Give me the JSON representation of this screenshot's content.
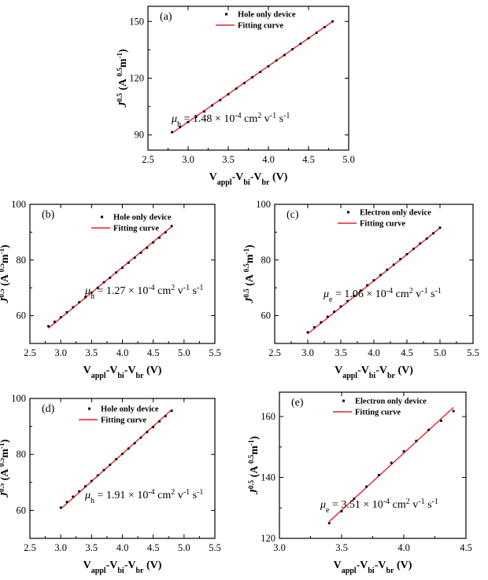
{
  "chart_data": [
    {
      "type": "scatter",
      "label": "(a)",
      "xlabel": {
        "main": "V",
        "s1": "appl",
        "m2": "-V",
        "s2": "bi",
        "m3": "-V",
        "s3": "br",
        "unit": " (V)"
      },
      "ylabel": {
        "main": "J",
        "sup": "0.5",
        "unit_open": " (A ",
        "unit_sup": "0.5",
        "unit_rest": "m",
        "unit_sup2": "-1",
        "unit_close": ")"
      },
      "xlim": [
        2.5,
        5.0
      ],
      "ylim": [
        82,
        158
      ],
      "xticks": [
        "2.5",
        "3.0",
        "3.5",
        "4.0",
        "4.5",
        "5.0"
      ],
      "yticks": [
        "90",
        "120",
        "150"
      ],
      "legend": {
        "points": "Hole only device",
        "fit": "Fitting curve",
        "placement": "top-right"
      },
      "mobility": {
        "symbol": "μ",
        "sub": "h",
        "text": " = 1.48 × 10",
        "exp": "-4",
        "unit": " cm",
        "u1": "2",
        "v": " v",
        "u2": "-1",
        "s": " s",
        "u3": "-1"
      },
      "fit": {
        "x": [
          2.8,
          4.8
        ],
        "y": [
          91.0,
          150.0
        ]
      },
      "series": [
        {
          "name": "Hole only device",
          "x": [
            2.8,
            2.9,
            3.0,
            3.1,
            3.2,
            3.3,
            3.4,
            3.5,
            3.6,
            3.7,
            3.8,
            3.9,
            4.0,
            4.1,
            4.2,
            4.3,
            4.4,
            4.5,
            4.6,
            4.7,
            4.8
          ],
          "y": [
            91.5,
            94.2,
            96.8,
            99.6,
            102.4,
            105.6,
            108.4,
            111.5,
            114.5,
            117.4,
            120.5,
            123.3,
            126.3,
            129.4,
            132.2,
            135.3,
            138.2,
            141.1,
            144.0,
            147.0,
            150.0
          ]
        }
      ]
    },
    {
      "type": "scatter",
      "label": "(b)",
      "xlabel": {
        "main": "V",
        "s1": "appl",
        "m2": "-V",
        "s2": "bi",
        "m3": "-V",
        "s3": "br",
        "unit": " (V)"
      },
      "ylabel": {
        "main": "J",
        "sup": "0.5",
        "unit_open": " (A ",
        "unit_sup": "0.5",
        "unit_rest": "m",
        "unit_sup2": "-1",
        "unit_close": ")"
      },
      "xlim": [
        2.5,
        5.5
      ],
      "ylim": [
        50,
        100
      ],
      "xticks": [
        "2.5",
        "3.0",
        "3.5",
        "4.0",
        "4.5",
        "5.0",
        "5.5"
      ],
      "yticks": [
        "60",
        "80",
        "100"
      ],
      "legend": {
        "points": "Hole only device",
        "fit": "Fitting curve",
        "placement": "top-right"
      },
      "mobility": {
        "symbol": "μ",
        "sub": "h",
        "text": " = 1.27 × 10",
        "exp": "-4",
        "unit": " cm",
        "u1": "2",
        "v": " v",
        "u2": "-1",
        "s": " s",
        "u3": "-1"
      },
      "fit": {
        "x": [
          2.8,
          4.8
        ],
        "y": [
          55.5,
          92.0
        ]
      },
      "series": [
        {
          "name": "Hole only device",
          "x": [
            2.8,
            2.9,
            3.0,
            3.1,
            3.2,
            3.3,
            3.4,
            3.5,
            3.6,
            3.7,
            3.8,
            3.9,
            4.0,
            4.1,
            4.2,
            4.3,
            4.4,
            4.5,
            4.6,
            4.7,
            4.8
          ],
          "y": [
            56.2,
            57.8,
            59.4,
            61.2,
            63.0,
            64.8,
            66.6,
            68.3,
            70.0,
            72.0,
            73.6,
            75.5,
            77.2,
            79.0,
            80.8,
            82.6,
            84.4,
            86.3,
            88.0,
            89.9,
            92.2
          ]
        }
      ]
    },
    {
      "type": "scatter",
      "label": "(c)",
      "xlabel": {
        "main": "V",
        "s1": "appl",
        "m2": "-V",
        "s2": "bi",
        "m3": "-V",
        "s3": "br",
        "unit": " (V)"
      },
      "ylabel": {
        "main": "J",
        "sup": "0.5",
        "unit_open": " (A ",
        "unit_sup": "0.5",
        "unit_rest": "m",
        "unit_sup2": "-1",
        "unit_close": ")"
      },
      "xlim": [
        2.5,
        5.5
      ],
      "ylim": [
        50,
        100
      ],
      "xticks": [
        "2.5",
        "3.0",
        "3.5",
        "4.0",
        "4.5",
        "5.0",
        "5.5"
      ],
      "yticks": [
        "60",
        "80",
        "100"
      ],
      "legend": {
        "points": "Electron only device",
        "fit": "Fitting curve",
        "placement": "top-right"
      },
      "mobility": {
        "symbol": "μ",
        "sub": "e",
        "text": " = 1.06 × 10",
        "exp": "-4",
        "unit": " cm",
        "u1": "2",
        "v": " v",
        "u2": "-1",
        "s": " s",
        "u3": "-1"
      },
      "fit": {
        "x": [
          3.0,
          5.0
        ],
        "y": [
          53.5,
          91.5
        ]
      },
      "series": [
        {
          "name": "Electron only device",
          "x": [
            3.0,
            3.1,
            3.2,
            3.3,
            3.4,
            3.5,
            3.6,
            3.7,
            3.8,
            3.9,
            4.0,
            4.1,
            4.2,
            4.3,
            4.4,
            4.5,
            4.6,
            4.7,
            4.8,
            4.9,
            5.0
          ],
          "y": [
            54.0,
            55.8,
            57.6,
            59.6,
            61.4,
            63.3,
            65.2,
            67.1,
            69.0,
            70.9,
            72.7,
            74.6,
            76.5,
            78.3,
            80.3,
            82.1,
            84.0,
            85.9,
            87.7,
            89.6,
            91.6
          ]
        }
      ]
    },
    {
      "type": "scatter",
      "label": "(d)",
      "xlabel": {
        "main": "V",
        "s1": "appl",
        "m2": "-V",
        "s2": "bi",
        "m3": "-V",
        "s3": "br",
        "unit": " (V)"
      },
      "ylabel": {
        "main": "J",
        "sup": "0.5",
        "unit_open": " (A ",
        "unit_sup": "0.5",
        "unit_rest": "m",
        "unit_sup2": "-1",
        "unit_close": ")"
      },
      "xlim": [
        2.5,
        5.5
      ],
      "ylim": [
        50,
        100
      ],
      "xticks": [
        "2.5",
        "3.0",
        "3.5",
        "4.0",
        "4.5",
        "5.0",
        "5.5"
      ],
      "yticks": [
        "60",
        "80",
        "100"
      ],
      "legend": {
        "points": "Hole only device",
        "fit": "Fitting curve",
        "placement": "top-right"
      },
      "mobility": {
        "symbol": "μ",
        "sub": "h",
        "text": " = 1.91 × 10",
        "exp": "-4",
        "unit": " cm",
        "u1": "2",
        "v": " v",
        "u2": "-1",
        "s": " s",
        "u3": "-1"
      },
      "fit": {
        "x": [
          3.0,
          4.8
        ],
        "y": [
          60.5,
          96.0
        ]
      },
      "series": [
        {
          "name": "Hole only device",
          "x": [
            3.0,
            3.1,
            3.2,
            3.3,
            3.4,
            3.5,
            3.6,
            3.7,
            3.8,
            3.9,
            4.0,
            4.1,
            4.2,
            4.3,
            4.4,
            4.5,
            4.6,
            4.7,
            4.8
          ],
          "y": [
            61.0,
            63.0,
            64.9,
            66.8,
            68.6,
            70.5,
            72.5,
            74.4,
            76.3,
            78.3,
            80.2,
            82.1,
            84.0,
            86.0,
            88.0,
            89.8,
            91.8,
            93.7,
            95.6
          ]
        }
      ]
    },
    {
      "type": "scatter",
      "label": "(e)",
      "xlabel": {
        "main": "V",
        "s1": "appl",
        "m2": "-V",
        "s2": "bi",
        "m3": "-V",
        "s3": "br",
        "unit": " (V)"
      },
      "ylabel": {
        "main": "J",
        "sup": "0.5",
        "unit_open": " (A ",
        "unit_sup": "0.5",
        "unit_rest": "m",
        "unit_sup2": "-1",
        "unit_close": ")"
      },
      "xlim": [
        3.0,
        4.5
      ],
      "ylim": [
        120,
        168
      ],
      "xticks": [
        "3.0",
        "3.5",
        "4.0",
        "4.5"
      ],
      "yticks": [
        "120",
        "140",
        "160"
      ],
      "legend": {
        "points": "Electron only device",
        "fit": "Fitting curve",
        "placement": "top-right"
      },
      "mobility": {
        "symbol": "μ",
        "sub": "e",
        "text": " = 3.51 × 10",
        "exp": "-4",
        "unit": " cm",
        "u1": "2",
        "v": " v",
        "u2": "-1",
        "s": " s",
        "u3": "-1"
      },
      "fit": {
        "x": [
          3.4,
          4.4
        ],
        "y": [
          125.5,
          163.0
        ]
      },
      "series": [
        {
          "name": "Electron only device",
          "x": [
            3.4,
            3.5,
            3.6,
            3.7,
            3.8,
            3.9,
            4.0,
            4.1,
            4.2,
            4.3,
            4.4
          ],
          "y": [
            125.0,
            128.9,
            133.0,
            137.0,
            140.8,
            144.8,
            148.6,
            152.0,
            155.6,
            158.6,
            161.8
          ]
        }
      ]
    }
  ]
}
